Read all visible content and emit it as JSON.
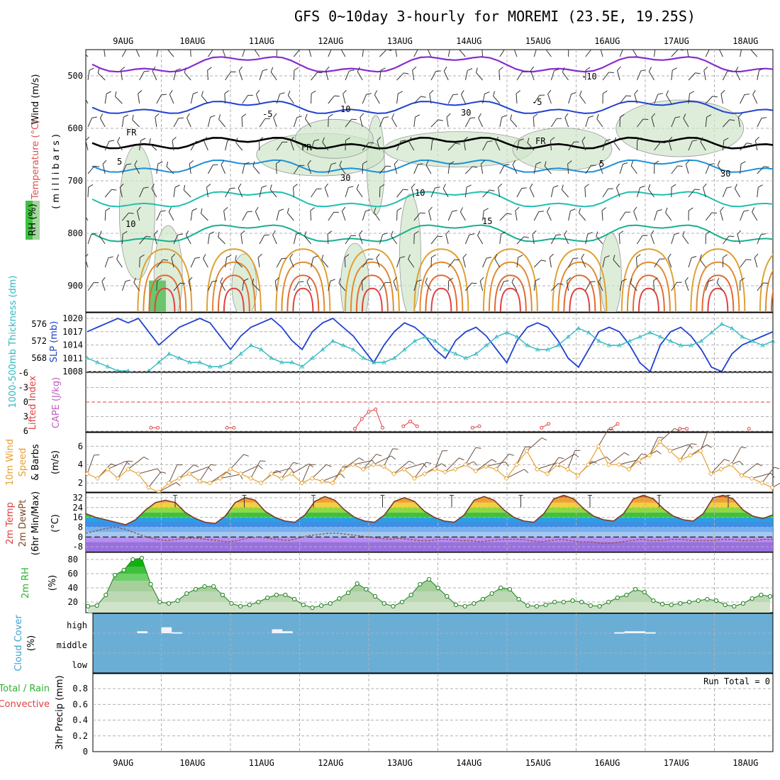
{
  "title": "GFS 0~10day 3-hourly for MOREMI (23.5E, 19.25S)",
  "date_labels": [
    "9AUG",
    "10AUG",
    "11AUG",
    "12AUG",
    "13AUG",
    "14AUG",
    "15AUG",
    "16AUG",
    "17AUG",
    "18AUG"
  ],
  "colors": {
    "purple": "#8a2bd2",
    "blue": "#2040d0",
    "lightblue": "#1e90d8",
    "teal": "#20c0b0",
    "green_band": "#dcebd8",
    "cloud_bg": "#6aaed6",
    "orange": "#e0a030",
    "red": "#e04040",
    "cyan": "#30b8c0",
    "brown": "#7b4a2a"
  },
  "panels": {
    "upper_air": {
      "ylabel_wind": "Wind (m/s)",
      "ylabel_temp": "Temperature (°C)",
      "ylabel_rh": "RH (%)",
      "ylabel_mb": "(millibars)",
      "yticks": [
        "500",
        "600",
        "700",
        "800",
        "900"
      ],
      "contour_labels": [
        "-10",
        "-5",
        "FR",
        "FR",
        "FR",
        "-5",
        "5",
        "5",
        "10",
        "15",
        "10",
        "30",
        "30",
        "10",
        "30"
      ]
    },
    "slp": {
      "ylabel_left": "1000-500mb Thickness (dm)",
      "ylabel_right": "SLP (mb)",
      "left_ticks": [
        "576",
        "572",
        "568"
      ],
      "right_ticks": [
        "1020",
        "1017",
        "1014",
        "1011",
        "1008"
      ]
    },
    "cape": {
      "ylabel_left": "Lifted Index",
      "ylabel_right": "CAPE (J/kg)",
      "yticks": [
        "-6",
        "-3",
        "0",
        "3",
        "6"
      ]
    },
    "wind10m": {
      "ylabel": "10m Wind Speed & Barbs",
      "yticks": [
        "6",
        "4",
        "2"
      ],
      "unit": "(m/s)"
    },
    "temp2m": {
      "ylabel": "2m Temp 2m DewPt (6hr Min/Max)",
      "yticks": [
        "32",
        "24",
        "16",
        "8",
        "0",
        "-8"
      ],
      "unit": "(°C)"
    },
    "rh2m": {
      "ylabel": "2m RH",
      "yticks": [
        "80",
        "60",
        "40",
        "20"
      ],
      "unit": "(%)"
    },
    "cloud": {
      "ylabel": "Cloud Cover",
      "unit": "(%)",
      "levels": [
        "high",
        "middle",
        "low"
      ]
    },
    "precip": {
      "ylabel_a": "Total / Rain",
      "ylabel_b": "Convective",
      "ylabel_c": "3hr Precip (mm)",
      "yticks": [
        "0.8",
        "0.6",
        "0.4",
        "0.2",
        "0"
      ],
      "run_total": "Run Total = 0"
    }
  },
  "chart_data": [
    {
      "type": "line",
      "title": "SLP and 1000-500mb Thickness",
      "x_unit": "days from start (9AUG 00Z = 0.5)",
      "series": [
        {
          "name": "SLP (mb)",
          "values": [
            1017,
            1018,
            1019,
            1020,
            1019,
            1020,
            1017,
            1014,
            1016,
            1018,
            1019,
            1020,
            1019,
            1016,
            1013,
            1016,
            1018,
            1019,
            1020,
            1018,
            1015,
            1013,
            1017,
            1019,
            1020,
            1018,
            1016,
            1013,
            1010,
            1014,
            1017,
            1019,
            1018,
            1016,
            1013,
            1011,
            1015,
            1017,
            1018,
            1016,
            1013,
            1010,
            1015,
            1018,
            1019,
            1018,
            1015,
            1011,
            1009,
            1013,
            1017,
            1018,
            1017,
            1014,
            1010,
            1008,
            1014,
            1017,
            1018,
            1016,
            1013,
            1009,
            1008,
            1012,
            1014,
            1015,
            1016,
            1017
          ]
        },
        {
          "name": "Thickness (dm)",
          "values": [
            568,
            567,
            566,
            565,
            565,
            564,
            565,
            567,
            569,
            568,
            567,
            567,
            566,
            566,
            567,
            569,
            571,
            570,
            568,
            567,
            567,
            566,
            568,
            570,
            572,
            571,
            570,
            568,
            567,
            567,
            568,
            570,
            572,
            573,
            572,
            570,
            569,
            568,
            569,
            571,
            573,
            574,
            573,
            571,
            570,
            570,
            571,
            573,
            575,
            574,
            572,
            571,
            571,
            572,
            573,
            574,
            573,
            572,
            571,
            571,
            572,
            574,
            576,
            575,
            573,
            572,
            571,
            572
          ]
        }
      ]
    },
    {
      "type": "line",
      "title": "Lifted Index",
      "ylim": [
        -6,
        6
      ],
      "x_days": [
        0.85,
        0.95,
        1.95,
        2.05,
        3.8,
        3.9,
        4.0,
        4.1,
        4.2,
        4.5,
        4.6,
        4.7,
        5.5,
        5.6,
        6.5,
        6.6,
        7.5,
        7.6,
        8.5,
        8.6,
        9.5
      ],
      "values": [
        5.3,
        5.3,
        5.3,
        5.3,
        5.5,
        3.5,
        2,
        1.5,
        5.3,
        5,
        4,
        5,
        5.3,
        5,
        5.3,
        4.5,
        5.5,
        4.5,
        5.5,
        5.5,
        5.5
      ]
    },
    {
      "type": "line",
      "title": "10m Wind Speed (m/s)",
      "ylim": [
        1,
        7.5
      ],
      "values": [
        3,
        2.5,
        3.5,
        2.5,
        3.5,
        3,
        1.5,
        1,
        2,
        2.5,
        3,
        2.2,
        2,
        2.5,
        3.5,
        3,
        2.5,
        2,
        3,
        2.5,
        3,
        2,
        2.5,
        2.2,
        2,
        3.5,
        4,
        3.5,
        4,
        3.8,
        3,
        3.5,
        2.5,
        3,
        3.5,
        3.2,
        3.5,
        4,
        3.3,
        3.8,
        3.5,
        2.5,
        4,
        5.5,
        3.5,
        3,
        4,
        3.5,
        2.8,
        4,
        6,
        4,
        4,
        3.5,
        4.5,
        5,
        6.5,
        5.5,
        4.5,
        5,
        5.5,
        3,
        3.5,
        4,
        2.8,
        2.5,
        2,
        1.5
      ]
    },
    {
      "type": "area",
      "title": "2m Temp (°C)",
      "ylim": [
        -8,
        36
      ],
      "temp": [
        19,
        16,
        14,
        12,
        10,
        14,
        22,
        28,
        30,
        28,
        20,
        15,
        12,
        11,
        17,
        28,
        32,
        30,
        21,
        16,
        13,
        12,
        18,
        29,
        33,
        30,
        22,
        16,
        13,
        12,
        18,
        29,
        32,
        29,
        21,
        16,
        13,
        12,
        18,
        30,
        33,
        30,
        22,
        16,
        13,
        12,
        19,
        31,
        34,
        31,
        23,
        17,
        14,
        13,
        19,
        31,
        34,
        31,
        23,
        17,
        14,
        13,
        19,
        32,
        34,
        31,
        22,
        17,
        15,
        18
      ],
      "dewpt": [
        3,
        5,
        7,
        8,
        6,
        3,
        0,
        -2,
        -3,
        -2,
        -1,
        -1,
        -2,
        -3,
        -4,
        -3,
        -1,
        0,
        -1,
        -2,
        -3,
        -1,
        1,
        2,
        3,
        3,
        2,
        1,
        0,
        -1,
        -2,
        -1,
        -2,
        -3,
        -3,
        -2,
        -2,
        -3,
        -3,
        -4,
        -3,
        -2,
        -2,
        -2,
        -3,
        -4,
        -3,
        -2,
        -3,
        -4,
        -4,
        -5,
        -5,
        -4,
        -3,
        -2,
        -3,
        -3,
        -2,
        -2,
        -3,
        -3,
        -3,
        -2,
        -2,
        -3,
        -3,
        -2,
        -2
      ]
    },
    {
      "type": "area",
      "title": "2m RH (%)",
      "ylim": [
        5,
        90
      ],
      "values": [
        14,
        15,
        30,
        58,
        65,
        80,
        82,
        45,
        20,
        18,
        22,
        32,
        38,
        42,
        42,
        30,
        18,
        14,
        16,
        20,
        26,
        30,
        30,
        24,
        16,
        12,
        15,
        18,
        25,
        33,
        46,
        38,
        28,
        18,
        14,
        20,
        30,
        45,
        52,
        40,
        28,
        16,
        14,
        18,
        24,
        32,
        40,
        38,
        24,
        15,
        14,
        16,
        20,
        20,
        22,
        20,
        15,
        14,
        20,
        26,
        30,
        38,
        34,
        22,
        17,
        16,
        18,
        20,
        22,
        24,
        22,
        16,
        14,
        18,
        25,
        30,
        28
      ]
    },
    {
      "type": "bar",
      "title": "Cloud Cover - high",
      "segments_days": [
        [
          0.65,
          0.8,
          10
        ],
        [
          1.0,
          1.15,
          30
        ],
        [
          1.15,
          1.3,
          5
        ],
        [
          2.6,
          2.75,
          20
        ],
        [
          2.75,
          2.9,
          10
        ],
        [
          7.55,
          7.7,
          5
        ],
        [
          7.7,
          7.85,
          10
        ],
        [
          7.85,
          8.0,
          10
        ],
        [
          8.0,
          8.15,
          5
        ]
      ]
    }
  ]
}
